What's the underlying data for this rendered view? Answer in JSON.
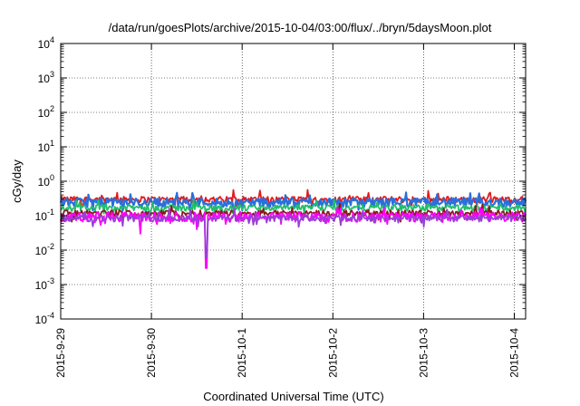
{
  "chart_data": {
    "type": "line",
    "title": "/data/run/goesPlots/archive/2015-10-04/03:00/flux/../bryn/5daysMoon.plot",
    "xlabel": "Coordinated Universal Time (UTC)",
    "ylabel": "cGy/day",
    "yscale": "log",
    "ylim": [
      0.0001,
      10000
    ],
    "xlim": [
      "2015-09-29T00:00",
      "2015-10-04T03:00"
    ],
    "grid": true,
    "legend": "none",
    "x_ticks": [
      {
        "label": "2015-9-29",
        "date": "2015-09-29"
      },
      {
        "label": "2015-9-30",
        "date": "2015-09-30"
      },
      {
        "label": "2015-10-1",
        "date": "2015-10-01"
      },
      {
        "label": "2015-10-2",
        "date": "2015-10-02"
      },
      {
        "label": "2015-10-3",
        "date": "2015-10-03"
      },
      {
        "label": "2015-10-4",
        "date": "2015-10-04"
      }
    ],
    "y_ticks": [
      {
        "base": "10",
        "exp": "4",
        "value": 10000
      },
      {
        "base": "10",
        "exp": "3",
        "value": 1000
      },
      {
        "base": "10",
        "exp": "2",
        "value": 100
      },
      {
        "base": "10",
        "exp": "1",
        "value": 10
      },
      {
        "base": "10",
        "exp": "0",
        "value": 1
      },
      {
        "base": "10",
        "exp": "-1",
        "value": 0.1
      },
      {
        "base": "10",
        "exp": "-2",
        "value": 0.01
      },
      {
        "base": "10",
        "exp": "-3",
        "value": 0.001
      },
      {
        "base": "10",
        "exp": "-4",
        "value": 0.0001
      }
    ],
    "series": [
      {
        "color": "#e41a1c",
        "base": 0.3,
        "amp": 0.1,
        "dips": []
      },
      {
        "color": "#2a6fdb",
        "base": 0.25,
        "amp": 0.12,
        "dips": []
      },
      {
        "color": "#1fbf6a",
        "base": 0.17,
        "amp": 0.06,
        "dips": []
      },
      {
        "color": "#8b1a1a",
        "base": 0.12,
        "amp": 0.04,
        "dips": []
      },
      {
        "color": "#ff00ff",
        "base": 0.095,
        "amp": 0.05,
        "dips": [
          {
            "date": "2015-09-29T21:00",
            "value": 0.03
          },
          {
            "date": "2015-09-30T12:00",
            "value": 0.04
          },
          {
            "date": "2015-09-30T14:30",
            "value": 0.003
          }
        ]
      },
      {
        "color": "#9a3fd6",
        "base": 0.085,
        "amp": 0.03,
        "dips": [
          {
            "date": "2015-09-30T14:30",
            "value": 0.006
          }
        ]
      }
    ]
  }
}
